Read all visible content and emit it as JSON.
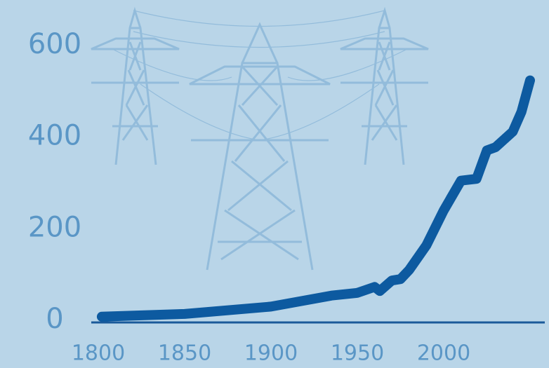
{
  "chart_data": {
    "type": "line",
    "x": [
      1802,
      1850,
      1900,
      1935,
      1950,
      1960,
      1963,
      1970,
      1975,
      1980,
      1990,
      2000,
      2010,
      2019,
      2025,
      2030,
      2040,
      2045,
      2050
    ],
    "series": [
      {
        "color": "#0d5aa0",
        "values": [
          8,
          14,
          30,
          54,
          60,
          73,
          64,
          87,
          90,
          110,
          164,
          240,
          305,
          309,
          371,
          378,
          412,
          455,
          524
        ]
      }
    ],
    "xlim": [
      1800,
      2050
    ],
    "xticks": [
      1800,
      1850,
      1900,
      1950,
      2000
    ],
    "ylim": [
      0,
      600
    ],
    "yticks": [
      0,
      200,
      400,
      600
    ]
  }
}
